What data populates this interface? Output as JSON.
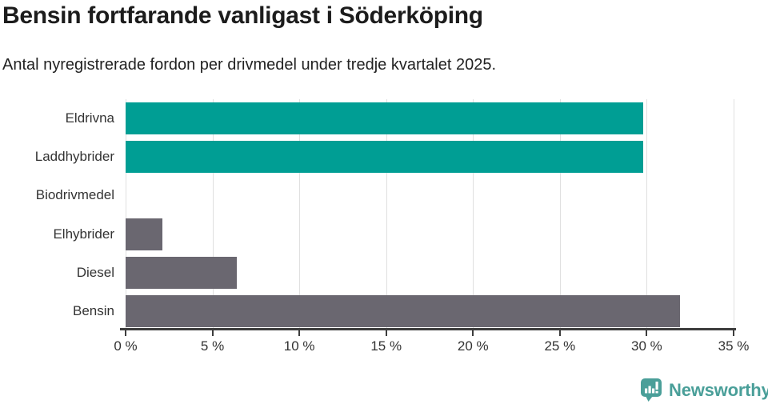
{
  "chart_data": {
    "type": "bar",
    "orientation": "horizontal",
    "title": "Bensin fortfarande vanligast i Söderköping",
    "subtitle": "Antal nyregistrerade fordon per drivmedel under tredje kvartalet 2025.",
    "categories": [
      "Eldrivna",
      "Laddhybrider",
      "Biodrivmedel",
      "Elhybrider",
      "Diesel",
      "Bensin"
    ],
    "values": [
      29.8,
      29.8,
      0,
      2.1,
      6.4,
      31.9
    ],
    "bar_colors": [
      "#009E94",
      "#009E94",
      "#6A6770",
      "#6A6770",
      "#6A6770",
      "#6A6770"
    ],
    "xlim": [
      0,
      35
    ],
    "x_ticks": [
      0,
      5,
      10,
      15,
      20,
      25,
      30,
      35
    ],
    "x_tick_labels": [
      "0 %",
      "5 %",
      "10 %",
      "15 %",
      "20 %",
      "25 %",
      "30 %",
      "35 %"
    ],
    "grid": true,
    "legend": "none"
  },
  "colors": {
    "teal_bar": "#009E94",
    "gray_bar": "#6A6770",
    "gridline": "#e0e0e0",
    "axis": "#3d3d3d",
    "title_text": "#1c1c1c",
    "label_text": "#333333"
  },
  "branding": {
    "logo_text": "Newsworthy",
    "logo_color": "#4A9F99"
  }
}
